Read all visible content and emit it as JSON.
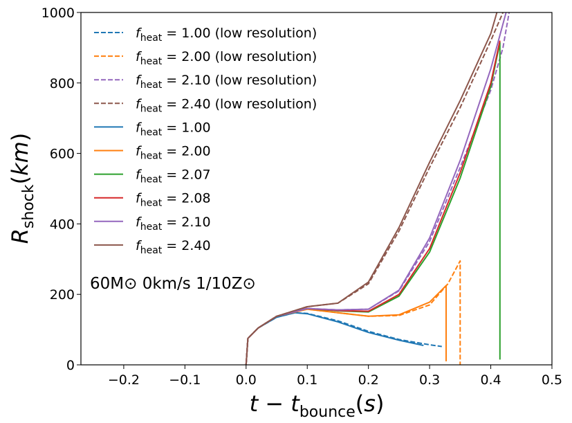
{
  "chart_data": {
    "type": "line",
    "xlabel": "t − t_bounce(s)",
    "ylabel": "R_shock(km)",
    "xlim": [
      -0.27,
      0.5
    ],
    "ylim": [
      0,
      1000
    ],
    "xticks": [
      -0.2,
      -0.1,
      0.0,
      0.1,
      0.2,
      0.3,
      0.4,
      0.5
    ],
    "xtick_labels": [
      "−0.2",
      "−0.1",
      "0.0",
      "0.1",
      "0.2",
      "0.3",
      "0.4",
      "0.5"
    ],
    "yticks": [
      0,
      200,
      400,
      600,
      800,
      1000
    ],
    "ytick_labels": [
      "0",
      "200",
      "400",
      "600",
      "800",
      "1000"
    ],
    "annotation": "60M⊙ 0km/s 1/10Z⊙",
    "legend_position": "upper-left",
    "series": [
      {
        "name": "f_heat = 1.00 (low resolution)",
        "label_main": "f",
        "label_sub": "heat",
        "label_rest": " = 1.00 (low resolution)",
        "color": "#1f77b4",
        "dash": true,
        "x": [
          0.0,
          0.003,
          0.02,
          0.05,
          0.08,
          0.1,
          0.15,
          0.2,
          0.25,
          0.3,
          0.32
        ],
        "y": [
          0,
          75,
          105,
          135,
          148,
          146,
          125,
          95,
          72,
          57,
          52
        ]
      },
      {
        "name": "f_heat = 2.00 (low resolution)",
        "label_main": "f",
        "label_sub": "heat",
        "label_rest": " = 2.00 (low resolution)",
        "color": "#ff7f0e",
        "dash": true,
        "x": [
          0.0,
          0.003,
          0.02,
          0.05,
          0.1,
          0.15,
          0.2,
          0.25,
          0.3,
          0.33,
          0.35,
          0.35
        ],
        "y": [
          0,
          75,
          105,
          138,
          158,
          148,
          138,
          140,
          170,
          230,
          295,
          0
        ]
      },
      {
        "name": "f_heat = 2.10 (low resolution)",
        "label_main": "f",
        "label_sub": "heat",
        "label_rest": " = 2.10 (low resolution)",
        "color": "#9467bd",
        "dash": true,
        "x": [
          0.0,
          0.003,
          0.02,
          0.05,
          0.1,
          0.15,
          0.2,
          0.25,
          0.3,
          0.35,
          0.4,
          0.42,
          0.43
        ],
        "y": [
          0,
          75,
          105,
          138,
          160,
          156,
          158,
          210,
          350,
          560,
          780,
          900,
          1000
        ]
      },
      {
        "name": "f_heat = 2.40 (low resolution)",
        "label_main": "f",
        "label_sub": "heat",
        "label_rest": " = 2.40 (low resolution)",
        "color": "#8c564b",
        "dash": true,
        "x": [
          0.0,
          0.003,
          0.02,
          0.05,
          0.1,
          0.15,
          0.2,
          0.25,
          0.3,
          0.35,
          0.4,
          0.42
        ],
        "y": [
          0,
          75,
          105,
          138,
          165,
          175,
          230,
          380,
          560,
          730,
          920,
          1000
        ]
      },
      {
        "name": "f_heat = 1.00",
        "label_main": "f",
        "label_sub": "heat",
        "label_rest": " = 1.00",
        "color": "#1f77b4",
        "dash": false,
        "x": [
          0.0,
          0.003,
          0.02,
          0.05,
          0.08,
          0.1,
          0.15,
          0.2,
          0.25,
          0.29
        ],
        "y": [
          0,
          75,
          105,
          135,
          148,
          145,
          122,
          92,
          70,
          55
        ]
      },
      {
        "name": "f_heat = 2.00",
        "label_main": "f",
        "label_sub": "heat",
        "label_rest": " = 2.00",
        "color": "#ff7f0e",
        "dash": false,
        "x": [
          0.0,
          0.003,
          0.02,
          0.05,
          0.1,
          0.15,
          0.2,
          0.25,
          0.3,
          0.327,
          0.327
        ],
        "y": [
          0,
          75,
          105,
          138,
          158,
          148,
          138,
          142,
          178,
          225,
          10
        ]
      },
      {
        "name": "f_heat = 2.07",
        "label_main": "f",
        "label_sub": "heat",
        "label_rest": " = 2.07",
        "color": "#2ca02c",
        "dash": false,
        "x": [
          0.0,
          0.003,
          0.02,
          0.05,
          0.1,
          0.15,
          0.2,
          0.25,
          0.3,
          0.35,
          0.4,
          0.415,
          0.415
        ],
        "y": [
          0,
          75,
          105,
          138,
          160,
          153,
          150,
          195,
          320,
          530,
          790,
          915,
          15
        ]
      },
      {
        "name": "f_heat = 2.08",
        "label_main": "f",
        "label_sub": "heat",
        "label_rest": " = 2.08",
        "color": "#d62728",
        "dash": false,
        "x": [
          0.0,
          0.003,
          0.02,
          0.05,
          0.1,
          0.15,
          0.2,
          0.25,
          0.3,
          0.35,
          0.4,
          0.415
        ],
        "y": [
          0,
          75,
          105,
          138,
          160,
          154,
          152,
          200,
          330,
          545,
          800,
          920
        ]
      },
      {
        "name": "f_heat = 2.10",
        "label_main": "f",
        "label_sub": "heat",
        "label_rest": " = 2.10",
        "color": "#9467bd",
        "dash": false,
        "x": [
          0.0,
          0.003,
          0.02,
          0.05,
          0.1,
          0.15,
          0.2,
          0.25,
          0.3,
          0.35,
          0.4,
          0.425
        ],
        "y": [
          0,
          75,
          105,
          138,
          160,
          156,
          158,
          212,
          360,
          580,
          840,
          1000
        ]
      },
      {
        "name": "f_heat = 2.40",
        "label_main": "f",
        "label_sub": "heat",
        "label_rest": " = 2.40",
        "color": "#8c564b",
        "dash": false,
        "x": [
          0.0,
          0.003,
          0.02,
          0.05,
          0.1,
          0.15,
          0.2,
          0.25,
          0.3,
          0.35,
          0.4,
          0.41
        ],
        "y": [
          0,
          75,
          105,
          138,
          165,
          175,
          235,
          390,
          575,
          750,
          940,
          1000
        ]
      }
    ]
  }
}
